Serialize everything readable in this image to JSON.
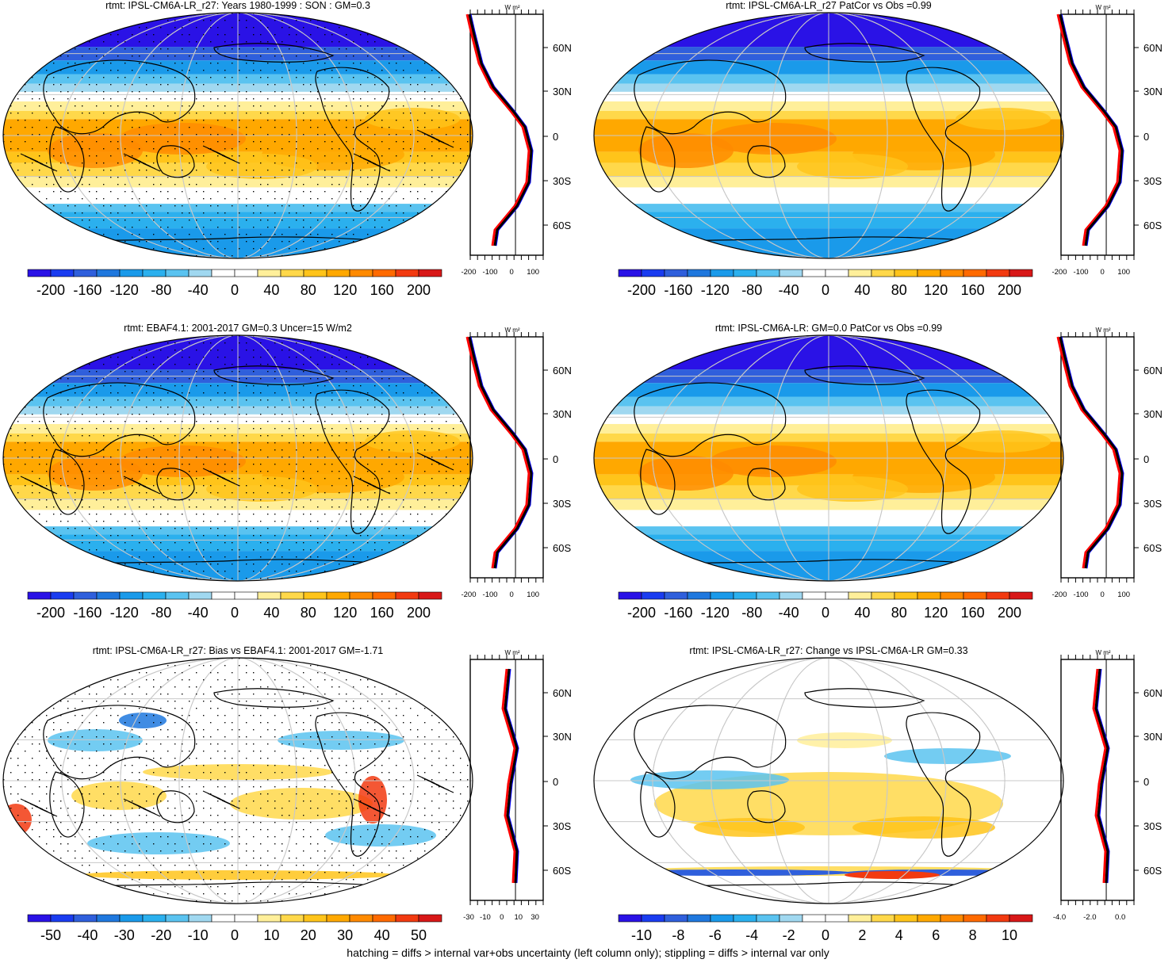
{
  "colors": {
    "ramp": [
      "#2a12e6",
      "#1a3cf0",
      "#2f5fdc",
      "#1f78de",
      "#1a9aea",
      "#2bb0ee",
      "#5ac3f0",
      "#a0d8f0",
      "#ffffff",
      "#ffffff",
      "#ffef9a",
      "#ffd84a",
      "#ffc41a",
      "#ffa800",
      "#ff8a00",
      "#ff6a00",
      "#f23a10",
      "#d81818"
    ],
    "hist": "#0000ff",
    "obs": "#ff0000",
    "model": "#000000",
    "grid": "#c8c8c8"
  },
  "footer": "hatching = diffs > internal var+obs uncertainty (left column only); stippling = diffs > internal var only",
  "profile_units": "W m²",
  "lat_ticks": [
    "60N",
    "30N",
    "0",
    "30S",
    "60S"
  ],
  "panels": [
    {
      "id": "p1",
      "title": "rtmt: IPSL-CM6A-LR_r27: Years 1980-1999 : SON : GM=0.3",
      "map": "full",
      "hatch": true,
      "stipple": "dense",
      "colorbar_labels": [
        "-200",
        "-160",
        "-120",
        "-80",
        "-40",
        "0",
        "40",
        "80",
        "120",
        "160",
        "200"
      ],
      "profile_x_labels": [
        "-200",
        "-100",
        "0",
        "100"
      ]
    },
    {
      "id": "p2",
      "title": "rtmt: IPSL-CM6A-LR_r27 PatCor vs Obs =0.99",
      "map": "full",
      "hatch": false,
      "stipple": "sparse",
      "colorbar_labels": [
        "-200",
        "-160",
        "-120",
        "-80",
        "-40",
        "0",
        "40",
        "80",
        "120",
        "160",
        "200"
      ],
      "profile_x_labels": [
        "-200",
        "-100",
        "0",
        "100"
      ]
    },
    {
      "id": "p3",
      "title": "rtmt: EBAF4.1: 2001-2017 GM=0.3 Uncer=15 W/m2",
      "map": "full",
      "hatch": true,
      "stipple": "dense",
      "colorbar_labels": [
        "-200",
        "-160",
        "-120",
        "-80",
        "-40",
        "0",
        "40",
        "80",
        "120",
        "160",
        "200"
      ],
      "profile_x_labels": [
        "-200",
        "-100",
        "0",
        "100"
      ]
    },
    {
      "id": "p4",
      "title": "rtmt: IPSL-CM6A-LR: GM=0.0 PatCor vs Obs =0.99",
      "map": "full",
      "hatch": false,
      "stipple": "sparse",
      "colorbar_labels": [
        "-200",
        "-160",
        "-120",
        "-80",
        "-40",
        "0",
        "40",
        "80",
        "120",
        "160",
        "200"
      ],
      "profile_x_labels": [
        "-200",
        "-100",
        "0",
        "100"
      ]
    },
    {
      "id": "p5",
      "title": "rtmt: IPSL-CM6A-LR_r27: Bias vs EBAF4.1: 2001-2017  GM=-1.71",
      "map": "bias",
      "hatch": true,
      "stipple": "dense",
      "colorbar_labels": [
        "-50",
        "-40",
        "-30",
        "-20",
        "-10",
        "0",
        "10",
        "20",
        "30",
        "40",
        "50"
      ],
      "profile_x_labels": [
        "-30",
        "-10",
        "0",
        "10",
        "30"
      ]
    },
    {
      "id": "p6",
      "title": "rtmt: IPSL-CM6A-LR_r27: Change vs IPSL-CM6A-LR GM=0.33",
      "map": "change",
      "hatch": false,
      "stipple": "sparse",
      "colorbar_labels": [
        "-10",
        "-8",
        "-6",
        "-4",
        "-2",
        "0",
        "2",
        "4",
        "6",
        "8",
        "10"
      ],
      "profile_x_labels": [
        "-4.0",
        "-2.0",
        "0.0"
      ]
    }
  ]
}
